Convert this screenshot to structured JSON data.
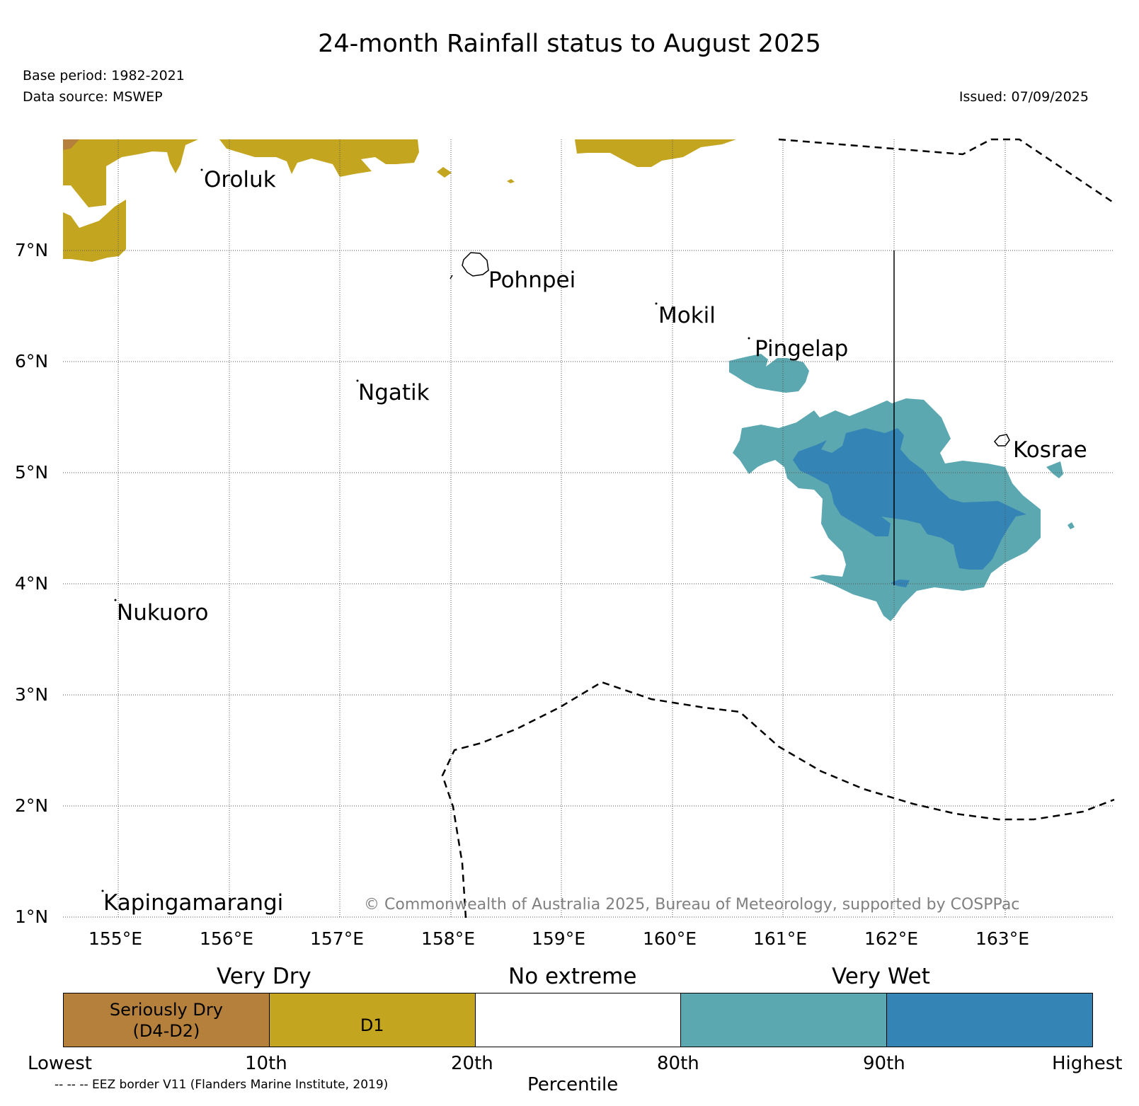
{
  "title": "24-month Rainfall status to August 2025",
  "meta": {
    "base_period": "Base period: 1982-2021",
    "data_source": "Data source: MSWEP",
    "issued": "Issued: 07/09/2025"
  },
  "map": {
    "lat_labels": [
      "7°N",
      "6°N",
      "5°N",
      "4°N",
      "3°N",
      "2°N",
      "1°N"
    ],
    "lon_labels": [
      "155°E",
      "156°E",
      "157°E",
      "158°E",
      "159°E",
      "160°E",
      "161°E",
      "162°E",
      "163°E"
    ],
    "islands": [
      "Oroluk",
      "Pohnpei",
      "Mokil",
      "Pingelap",
      "Ngatik",
      "Kosrae",
      "Nukuoro",
      "Kapingamarangi"
    ],
    "copyright": "© Commonwealth of Australia 2025, Bureau of Meteorology, supported by COSPPac",
    "colors": {
      "seriously_dry": "#b5803b",
      "d1": "#c4a520",
      "no_extreme": "#ffffff",
      "very_wet_80_90": "#5ba8b0",
      "very_wet_90_high": "#3584b6"
    }
  },
  "legend": {
    "groups": [
      "Very Dry",
      "No extreme",
      "Very Wet"
    ],
    "cells": [
      "Seriously Dry\n(D4-D2)",
      "D1",
      "",
      "",
      ""
    ],
    "ticks": [
      "Lowest",
      "10th",
      "20th",
      "80th",
      "90th",
      "Highest"
    ],
    "xlabel": "Percentile",
    "eez_note": "-- -- -- EEZ border V11 (Flanders Marine Institute, 2019)"
  }
}
